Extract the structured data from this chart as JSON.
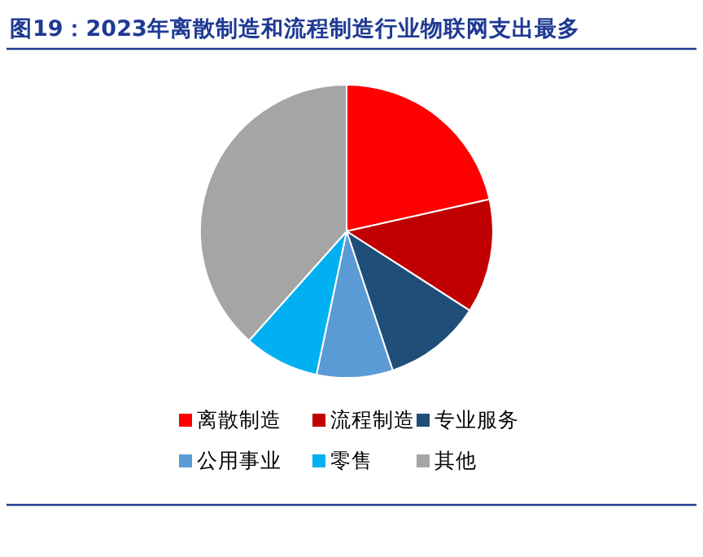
{
  "chart_data": {
    "type": "pie",
    "title": "图19：2023年离散制造和流程制造行业物联网支出最多",
    "categories": [
      "离散制造",
      "流程制造",
      "专业服务",
      "公用事业",
      "零售",
      "其他"
    ],
    "values": [
      21.5,
      12.6,
      10.8,
      8.4,
      8.3,
      38.4
    ],
    "colors": [
      "#ff0000",
      "#c00000",
      "#1f4e79",
      "#5b9bd5",
      "#00b0f0",
      "#a5a5a5"
    ],
    "legend": "bottom"
  }
}
